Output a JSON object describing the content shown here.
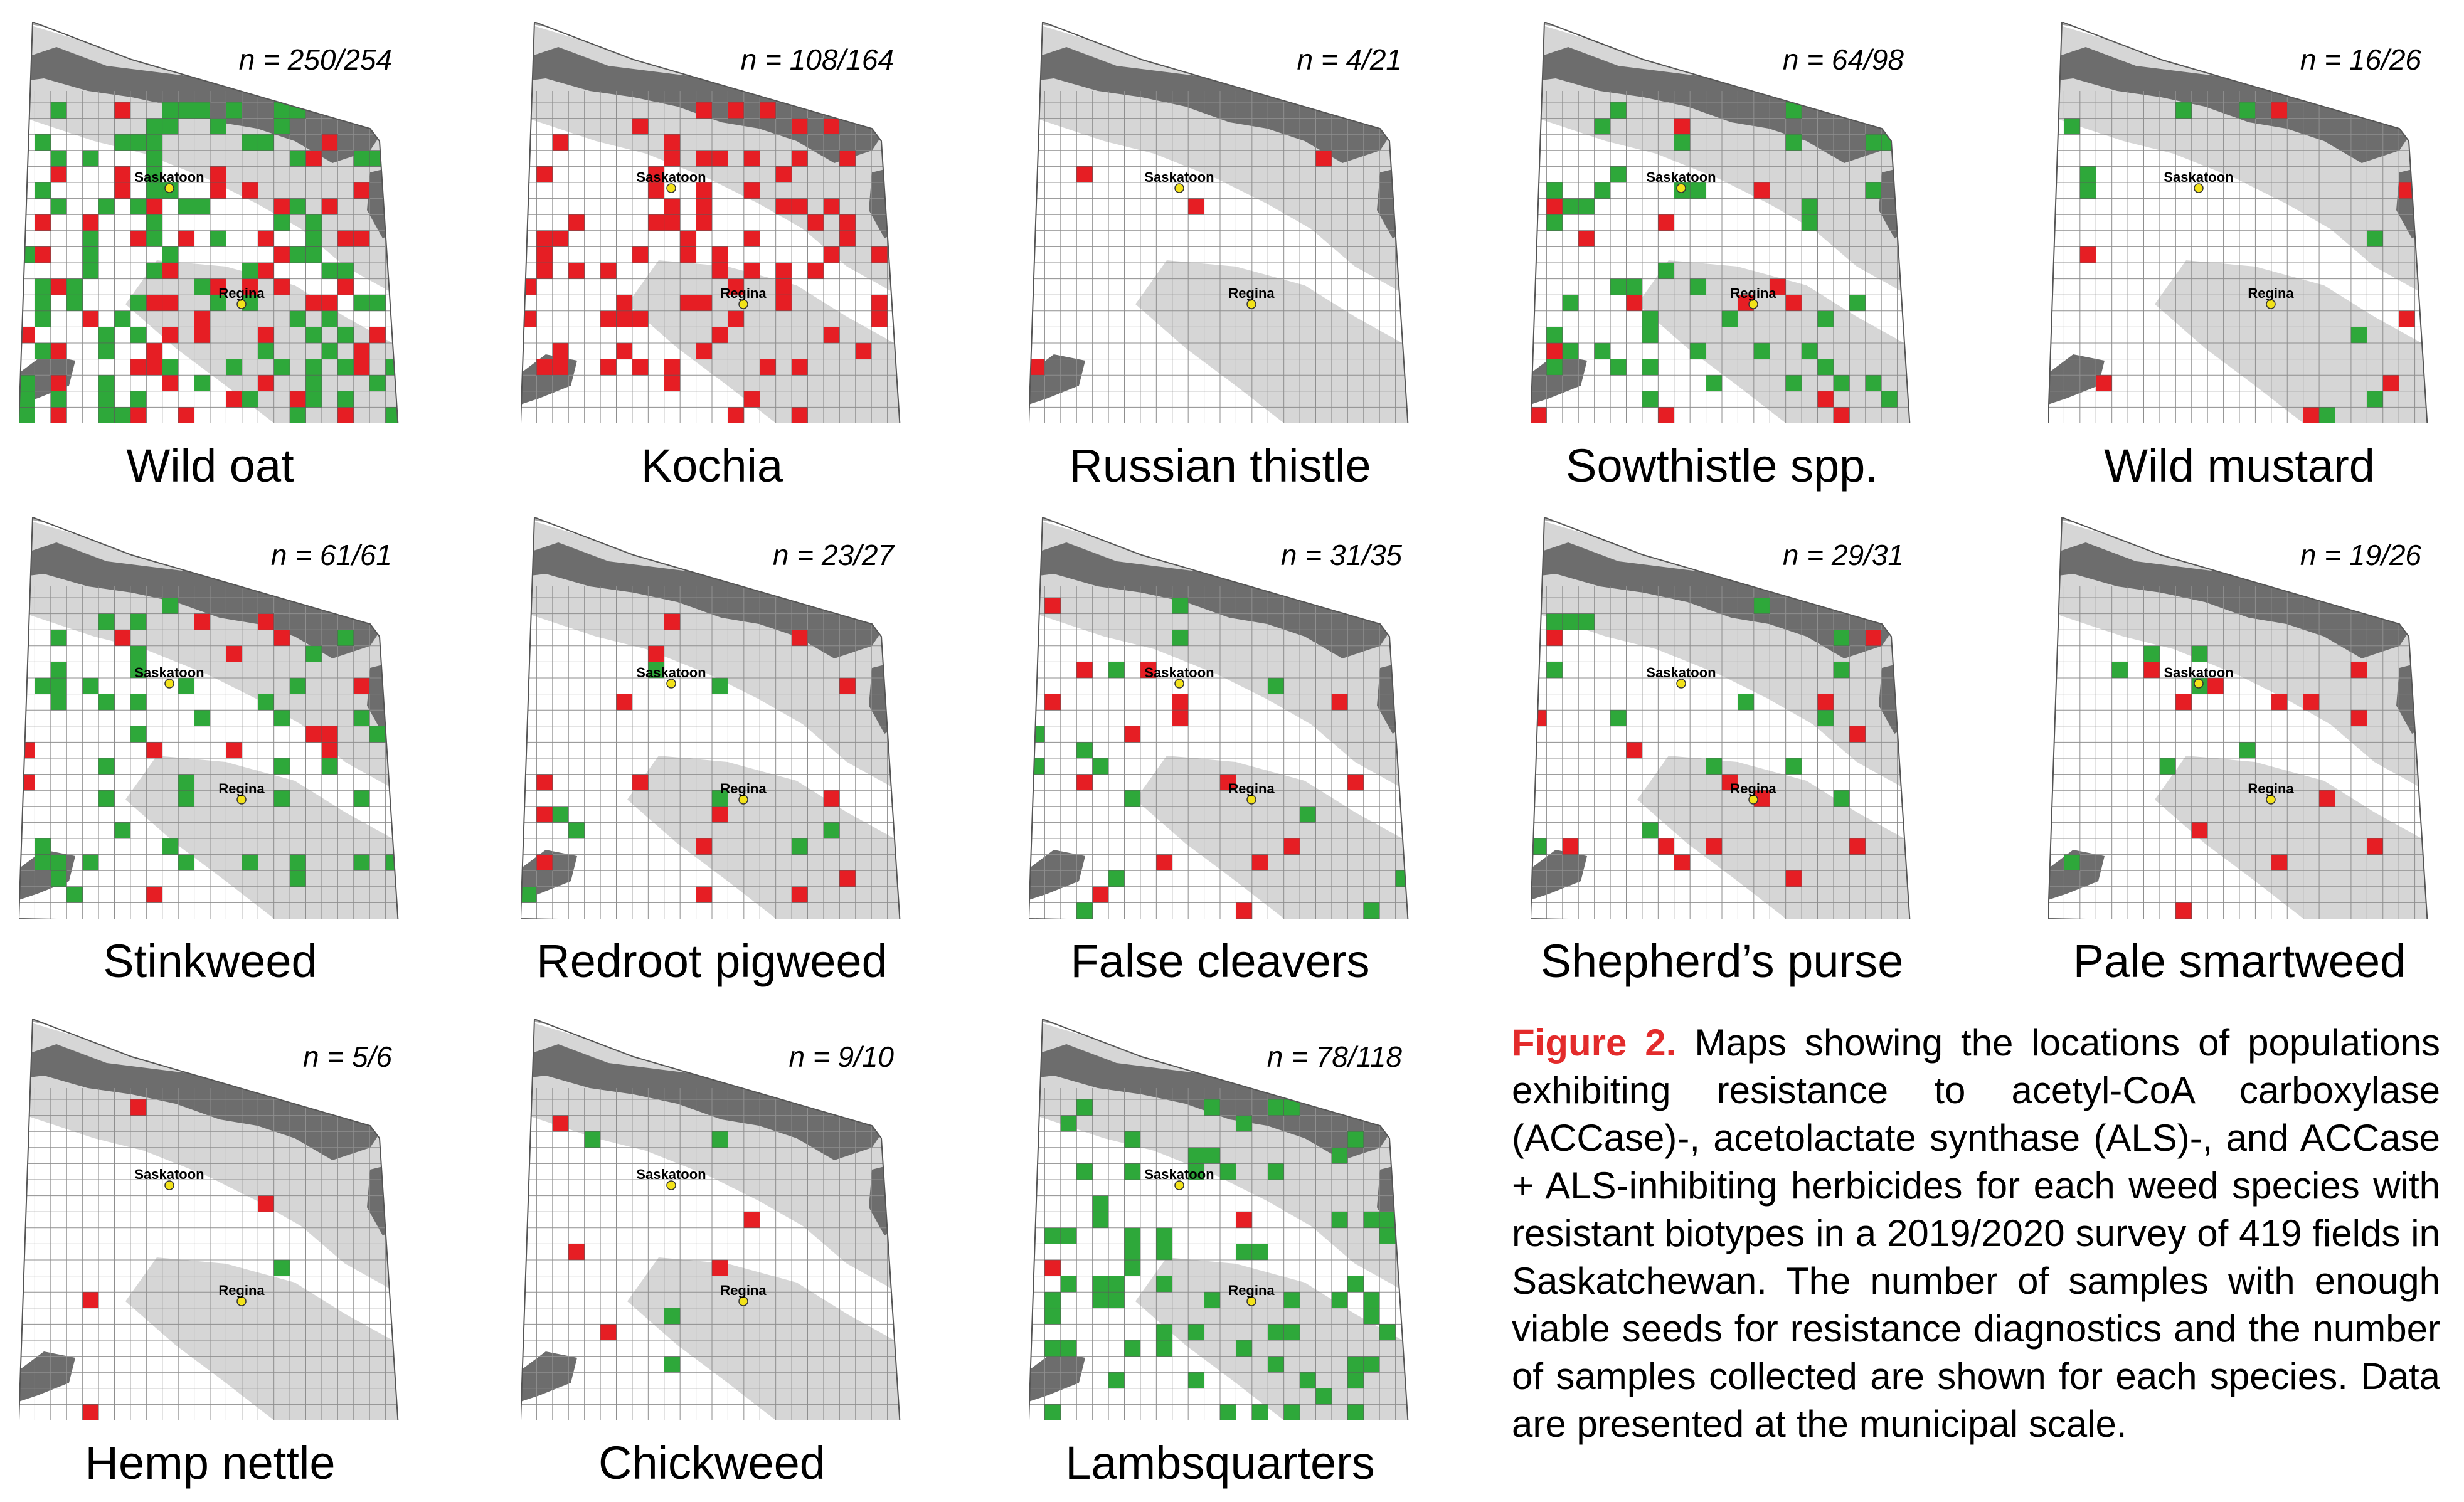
{
  "colors": {
    "resistant_red": "#e61e24",
    "susceptible_green": "#2ea83a",
    "forest_dark": "#6d6d6d",
    "northern_grey": "#a8a8a8",
    "parkland_grey": "#d6d6d6",
    "prairie_white": "#ffffff",
    "caption_lead": "#e32b2b"
  },
  "city_labels": {
    "north": "Saskatoon",
    "south": "Regina"
  },
  "panels": [
    {
      "species": "Wild oat",
      "n": "n = 250/254",
      "red_cells": 55,
      "green_cells": 95
    },
    {
      "species": "Kochia",
      "n": "n = 108/164",
      "red_cells": 80,
      "green_cells": 0
    },
    {
      "species": "Russian thistle",
      "n": "n = 4/21",
      "red_cells": 4,
      "green_cells": 0
    },
    {
      "species": "Sowthistle spp.",
      "n": "n = 64/98",
      "red_cells": 14,
      "green_cells": 44
    },
    {
      "species": "Wild mustard",
      "n": "n = 16/26",
      "red_cells": 7,
      "green_cells": 9
    },
    {
      "species": "Stinkweed",
      "n": "n = 61/61",
      "red_cells": 14,
      "green_cells": 45
    },
    {
      "species": "Redroot pigweed",
      "n": "n = 23/27",
      "red_cells": 15,
      "green_cells": 8
    },
    {
      "species": "False cleavers",
      "n": "n = 31/35",
      "red_cells": 16,
      "green_cells": 14
    },
    {
      "species": "Shepherd’s purse",
      "n": "n = 29/31",
      "red_cells": 14,
      "green_cells": 15
    },
    {
      "species": "Pale smartweed",
      "n": "n = 19/26",
      "red_cells": 12,
      "green_cells": 7
    },
    {
      "species": "Hemp nettle",
      "n": "n = 5/6",
      "red_cells": 4,
      "green_cells": 1
    },
    {
      "species": "Chickweed",
      "n": "n = 9/10",
      "red_cells": 5,
      "green_cells": 4
    },
    {
      "species": "Lambsquarters",
      "n": "n = 78/118",
      "red_cells": 2,
      "green_cells": 68
    }
  ],
  "caption": {
    "lead": "Figure 2.",
    "body": " Maps showing the locations of populations exhibiting resistance to acetyl-CoA carboxylase (ACCase)-, acetolactate synthase (ALS)-, and ACCase + ALS-inhibiting herbicides for each weed species with resistant biotypes in a 2019/2020 survey of 419 fields in Saskatchewan. The number of samples with enough viable seeds for resistance diagnostics and the number of samples collected are shown for each species. Data are presented at the municipal scale."
  }
}
